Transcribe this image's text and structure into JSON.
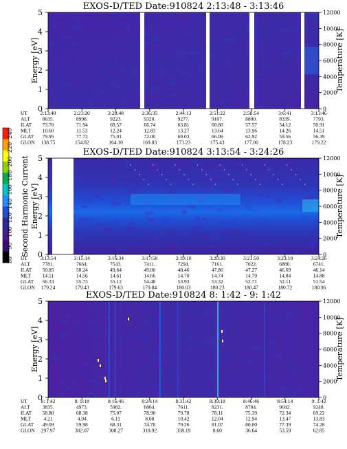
{
  "colorbar": {
    "label": "Second Harmonic Current",
    "ticks": [
      "80",
      "90",
      "100",
      "120",
      "140",
      "160",
      "180",
      "200",
      "220",
      "240"
    ],
    "colors": [
      "#000000",
      "#3a0a6e",
      "#4d1a8c",
      "#2a2a9e",
      "#1f4fd6",
      "#1e90ff",
      "#00c8c8",
      "#00b050",
      "#90d000",
      "#ffff00",
      "#ffa000",
      "#ff2000"
    ]
  },
  "panels": [
    {
      "title": "EXOS-D/TED   Date:910824  2:13:48 - 3:13:46",
      "ylabel": "Energy [eV]",
      "y2label": "Temperature [K]",
      "yticks": [
        "0",
        "1",
        "2",
        "3",
        "4",
        "5"
      ],
      "y2ticks": [
        "0",
        "2000",
        "4000",
        "6000",
        "8000",
        "10000",
        "12000"
      ],
      "row_labels": [
        "UT",
        "ALT",
        "ILAT",
        "MLT",
        "GLAT",
        "GLON"
      ],
      "columns": [
        [
          "2:13:48",
          "8635.",
          "73.70",
          "10.60",
          "79.95",
          "138.75"
        ],
        [
          "2:21:20",
          "8998.",
          "71.94",
          "11.53",
          "77.72",
          "154.82"
        ],
        [
          "2:28:48",
          "9223.",
          "69.57",
          "12.24",
          "75.01",
          "164.10"
        ],
        [
          "2:36:35",
          "9320.",
          "66.74",
          "12.83",
          "72.00",
          "169.83"
        ],
        [
          "2:44:13",
          "9277.",
          "63.81",
          "13.27",
          "69.03",
          "173.23"
        ],
        [
          "2:51:22",
          "9107.",
          "60.80",
          "13.64",
          "66.06",
          "175.43"
        ],
        [
          "2:58:54",
          "8800.",
          "57.57",
          "13.96",
          "62.92",
          "177.00"
        ],
        [
          "3:6:41",
          "8339.",
          "54.12",
          "14.26",
          "59.56",
          "178.23"
        ],
        [
          "3:13:46",
          "7793.",
          "50.91",
          "14.51",
          "56.39",
          "179.22"
        ]
      ]
    },
    {
      "title": "EXOS-D/TED   Date:910824  3:13:54 - 3:24:26",
      "ylabel": "Energy [eV]",
      "y2label": "Temperature [K]",
      "yticks": [
        "0",
        "1",
        "2",
        "3",
        "4",
        "5"
      ],
      "y2ticks": [
        "0",
        "2000",
        "4000",
        "6000",
        "8000",
        "10000",
        "12000"
      ],
      "row_labels": [
        "UT",
        "ALT",
        "ILAT",
        "MLT",
        "GLAT",
        "GLON"
      ],
      "columns": [
        [
          "3:13:54",
          "7781.",
          "50.85",
          "14.51",
          "56.33",
          "179.24"
        ],
        [
          "3:15:14",
          "7664.",
          "50.24",
          "14.56",
          "55.73",
          "179.43"
        ],
        [
          "3:16:34",
          "7543.",
          "49.64",
          "14.61",
          "55.12",
          "179.63"
        ],
        [
          "3:17:58",
          "7411.",
          "49.00",
          "14.66",
          "54.48",
          "179.84"
        ],
        [
          "3:19:10",
          "7294.",
          "48.46",
          "14.70",
          "53.93",
          "180.03"
        ],
        [
          "3:20:30",
          "7161.",
          "47.86",
          "14.74",
          "53.32",
          "180.23"
        ],
        [
          "3:21:50",
          "7022.",
          "47.27",
          "14.79",
          "52.71",
          "180.47"
        ],
        [
          "3:23:10",
          "6880.",
          "46.69",
          "14.84",
          "52.11",
          "180.72"
        ],
        [
          "3:24:26",
          "6741.",
          "46.14",
          "14.88",
          "51.54",
          "180.96"
        ]
      ]
    },
    {
      "title": "EXOS-D/TED   Date:910824  8: 1:42 - 9: 1:42",
      "ylabel": "Energy [eV]",
      "y2label": "Temperature [K]",
      "yticks": [
        "0",
        "1",
        "2",
        "3",
        "4",
        "5"
      ],
      "y2ticks": [
        "0",
        "2000",
        "4000",
        "6000",
        "8000",
        "10000",
        "12000"
      ],
      "row_labels": [
        "UT",
        "ALT",
        "ILAT",
        "MLT",
        "GLAT",
        "GLON"
      ],
      "columns": [
        [
          "8: 1:42",
          "3835.",
          "58.80",
          "4.21",
          "49.09",
          "297.97"
        ],
        [
          "8: 9:18",
          "4973.",
          "68.38",
          "4.94",
          "59.98",
          "302.07"
        ],
        [
          "8:16:46",
          "5982.",
          "75.07",
          "6.11",
          "68.31",
          "308.27"
        ],
        [
          "8:24:14",
          "6864.",
          "78.98",
          "8.08",
          "74.78",
          "318.92"
        ],
        [
          "8:31:42",
          "7611.",
          "79.78",
          "10.42",
          "79.26",
          "338.19"
        ],
        [
          "8:39:18",
          "8231.",
          "78.11",
          "12.04",
          "81.07",
          "8.60"
        ],
        [
          "8:46:46",
          "8704.",
          "75.39",
          "12.94",
          "80.00",
          "36.64"
        ],
        [
          "8:54:14",
          "9042.",
          "72.34",
          "13.47",
          "77.39",
          "53.59"
        ],
        [
          "9: 1:42",
          "9248.",
          "69.22",
          "13.83",
          "74.28",
          "62.85"
        ]
      ]
    }
  ],
  "chart_data": [
    {
      "type": "heatmap",
      "title": "EXOS-D/TED   Date:910824  2:13:48 - 3:13:46",
      "xlabel": "UT",
      "ylabel": "Energy [eV]",
      "y2label": "Temperature [K]",
      "ylim": [
        0,
        5
      ],
      "y2lim": [
        0,
        12000
      ],
      "x": [
        "2:13:48",
        "2:21:20",
        "2:28:48",
        "2:36:35",
        "2:44:13",
        "2:51:22",
        "2:58:54",
        "3:6:41",
        "3:13:46"
      ],
      "background_level": "low",
      "data_gaps_ut": [
        "2:36:35",
        "2:51:22",
        "2:58:54",
        "3:13:00"
      ]
    },
    {
      "type": "heatmap",
      "title": "EXOS-D/TED   Date:910824  3:13:54 - 3:24:26",
      "xlabel": "UT",
      "ylabel": "Energy [eV]",
      "y2label": "Temperature [K]",
      "ylim": [
        0,
        5
      ],
      "y2lim": [
        0,
        12000
      ],
      "x": [
        "3:13:54",
        "3:15:14",
        "3:16:34",
        "3:17:58",
        "3:19:10",
        "3:20:30",
        "3:21:50",
        "3:23:10",
        "3:24:26"
      ],
      "enhanced_band_energy_ev": [
        1.8,
        3.3
      ],
      "data_gap_ut": [
        "3:13:54",
        "3:15:00"
      ]
    },
    {
      "type": "heatmap",
      "title": "EXOS-D/TED   Date:910824  8: 1:42 - 9: 1:42",
      "xlabel": "UT",
      "ylabel": "Energy [eV]",
      "y2label": "Temperature [K]",
      "ylim": [
        0,
        5
      ],
      "y2lim": [
        0,
        12000
      ],
      "x": [
        "8: 1:42",
        "8: 9:18",
        "8:16:46",
        "8:24:14",
        "8:31:42",
        "8:39:18",
        "8:46:46",
        "8:54:14",
        "9: 1:42"
      ],
      "background_level": "low"
    }
  ]
}
